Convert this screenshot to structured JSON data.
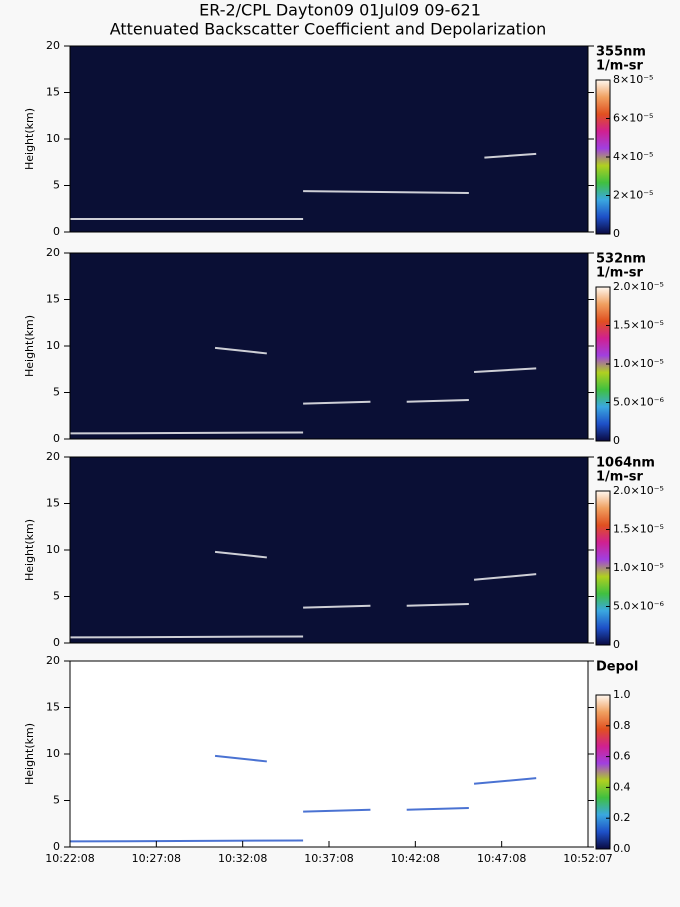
{
  "title": "ER-2/CPL Dayton09 01Jul09 09-621",
  "subtitle": "Attenuated Backscatter Coefficient and Depolarization",
  "chart_data": [
    {
      "type": "heatmap",
      "ylabel": "Height(km)",
      "ylim": [
        0,
        20
      ],
      "yticks": [
        0,
        5,
        10,
        15,
        20
      ],
      "colorbar_label": [
        "355nm",
        "1/m-sr"
      ],
      "background": "#0a0f35",
      "clim": [
        0,
        8e-05
      ],
      "cticks": [
        {
          "value": 0,
          "label": "0"
        },
        {
          "value": 2e-05,
          "label": "2×10⁻⁵"
        },
        {
          "value": 4e-05,
          "label": "4×10⁻⁵"
        },
        {
          "value": 6e-05,
          "label": "6×10⁻⁵"
        },
        {
          "value": 8e-05,
          "label": "8×10⁻⁵"
        }
      ],
      "colormap": [
        "#0a0a40",
        "#1e50c8",
        "#3aa8e0",
        "#40c040",
        "#b0d020",
        "#a040e0",
        "#d02090",
        "#e05020",
        "#f0a060",
        "#fff8f0"
      ]
    },
    {
      "type": "heatmap",
      "ylabel": "Height(km)",
      "ylim": [
        0,
        20
      ],
      "yticks": [
        0,
        5,
        10,
        15,
        20
      ],
      "colorbar_label": [
        "532nm",
        "1/m-sr"
      ],
      "background": "#0a0f35",
      "clim": [
        0,
        2e-05
      ],
      "cticks": [
        {
          "value": 0,
          "label": "0"
        },
        {
          "value": 5e-06,
          "label": "5.0×10⁻⁶"
        },
        {
          "value": 1e-05,
          "label": "1.0×10⁻⁵"
        },
        {
          "value": 1.5e-05,
          "label": "1.5×10⁻⁵"
        },
        {
          "value": 2e-05,
          "label": "2.0×10⁻⁵"
        }
      ],
      "colormap": [
        "#0a0a40",
        "#1e50c8",
        "#3aa8e0",
        "#40c040",
        "#b0d020",
        "#a040e0",
        "#d02090",
        "#e05020",
        "#f0a060",
        "#fff8f0"
      ]
    },
    {
      "type": "heatmap",
      "ylabel": "Height(km)",
      "ylim": [
        0,
        20
      ],
      "yticks": [
        0,
        5,
        10,
        15,
        20
      ],
      "colorbar_label": [
        "1064nm",
        "1/m-sr"
      ],
      "background": "#0a0f35",
      "clim": [
        0,
        2e-05
      ],
      "cticks": [
        {
          "value": 0,
          "label": "0"
        },
        {
          "value": 5e-06,
          "label": "5.0×10⁻⁶"
        },
        {
          "value": 1e-05,
          "label": "1.0×10⁻⁵"
        },
        {
          "value": 1.5e-05,
          "label": "1.5×10⁻⁵"
        },
        {
          "value": 2e-05,
          "label": "2.0×10⁻⁵"
        }
      ],
      "colormap": [
        "#0a0a40",
        "#1e50c8",
        "#3aa8e0",
        "#40c040",
        "#b0d020",
        "#a040e0",
        "#d02090",
        "#e05020",
        "#f0a060",
        "#fff8f0"
      ]
    },
    {
      "type": "heatmap",
      "ylabel": "Height(km)",
      "ylim": [
        0,
        20
      ],
      "yticks": [
        0,
        5,
        10,
        15,
        20
      ],
      "colorbar_label": [
        "Depol"
      ],
      "background": "#ffffff",
      "clim": [
        0,
        1
      ],
      "cticks": [
        {
          "value": 0,
          "label": "0.0"
        },
        {
          "value": 0.2,
          "label": "0.2"
        },
        {
          "value": 0.4,
          "label": "0.4"
        },
        {
          "value": 0.6,
          "label": "0.6"
        },
        {
          "value": 0.8,
          "label": "0.8"
        },
        {
          "value": 1,
          "label": "1.0"
        }
      ],
      "colormap": [
        "#0a0a40",
        "#1e50c8",
        "#3aa8e0",
        "#40c040",
        "#b0d020",
        "#a040e0",
        "#d02090",
        "#e05020",
        "#f0a060",
        "#fff8f0"
      ],
      "x_tick_labels": [
        "10:22:08",
        "10:27:08",
        "10:32:08",
        "10:37:08",
        "10:42:08",
        "10:47:08",
        "10:52:07"
      ]
    }
  ]
}
